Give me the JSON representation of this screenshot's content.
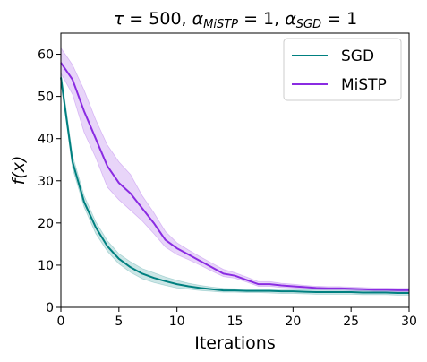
{
  "chart_data": {
    "type": "line",
    "title": {
      "tau": "500",
      "alpha_mistp_sub": "MiSTP",
      "alpha_mistp_value": "1",
      "alpha_sgd_sub": "SGD",
      "alpha_sgd_value": "1"
    },
    "xlabel": "Iterations",
    "ylabel": "f(x)",
    "xlim": [
      0,
      30
    ],
    "ylim": [
      0,
      65
    ],
    "xticks": [
      0,
      5,
      10,
      15,
      20,
      25,
      30
    ],
    "yticks": [
      0,
      10,
      20,
      30,
      40,
      50,
      60
    ],
    "grid": false,
    "legend_position": "top-right",
    "x": [
      0,
      1,
      2,
      3,
      4,
      5,
      6,
      7,
      8,
      9,
      10,
      11,
      12,
      13,
      14,
      15,
      16,
      17,
      18,
      19,
      20,
      21,
      22,
      23,
      24,
      25,
      26,
      27,
      28,
      29,
      30
    ],
    "series": [
      {
        "name": "SGD",
        "color": "#008080",
        "values": [
          54.5,
          34.5,
          25.0,
          19.0,
          14.5,
          11.5,
          9.5,
          8.0,
          7.0,
          6.2,
          5.5,
          5.0,
          4.6,
          4.3,
          4.0,
          4.0,
          3.9,
          3.9,
          3.9,
          3.8,
          3.8,
          3.7,
          3.6,
          3.6,
          3.6,
          3.6,
          3.5,
          3.5,
          3.5,
          3.4,
          3.4
        ],
        "lower": [
          53.5,
          33.0,
          23.8,
          17.5,
          13.3,
          10.3,
          8.3,
          6.8,
          5.9,
          5.2,
          4.6,
          4.3,
          4.0,
          3.8,
          3.6,
          3.6,
          3.5,
          3.5,
          3.4,
          3.3,
          3.3,
          3.2,
          3.1,
          3.1,
          3.1,
          3.1,
          3.0,
          3.0,
          3.0,
          2.9,
          2.9
        ],
        "upper": [
          56.0,
          36.0,
          26.5,
          20.3,
          15.8,
          12.7,
          10.8,
          9.2,
          8.2,
          7.2,
          6.4,
          5.7,
          5.2,
          4.8,
          4.5,
          4.4,
          4.3,
          4.3,
          4.3,
          4.3,
          4.3,
          4.2,
          4.1,
          4.1,
          4.1,
          4.1,
          4.0,
          4.0,
          4.0,
          3.9,
          3.9
        ]
      },
      {
        "name": "MiSTP",
        "color": "#8a2be2",
        "values": [
          58.0,
          54.0,
          46.5,
          40.0,
          33.5,
          29.5,
          27.0,
          23.5,
          20.0,
          16.0,
          14.0,
          12.5,
          11.0,
          9.5,
          8.0,
          7.5,
          6.5,
          5.5,
          5.5,
          5.2,
          5.0,
          4.8,
          4.6,
          4.5,
          4.5,
          4.4,
          4.3,
          4.2,
          4.2,
          4.1,
          4.1
        ],
        "lower": [
          55.5,
          50.5,
          41.5,
          35.5,
          28.5,
          25.5,
          23.0,
          20.5,
          17.5,
          14.3,
          12.5,
          11.3,
          10.0,
          8.6,
          7.3,
          6.9,
          6.0,
          5.0,
          5.0,
          4.7,
          4.6,
          4.4,
          4.2,
          4.1,
          4.1,
          4.0,
          3.9,
          3.8,
          3.8,
          3.7,
          3.7
        ],
        "upper": [
          61.5,
          57.5,
          51.5,
          44.5,
          38.5,
          34.5,
          31.5,
          26.5,
          22.5,
          18.0,
          15.3,
          13.6,
          12.0,
          10.5,
          9.0,
          8.2,
          7.2,
          6.1,
          6.1,
          5.7,
          5.5,
          5.2,
          5.0,
          4.9,
          4.9,
          4.8,
          4.7,
          4.6,
          4.6,
          4.5,
          4.5
        ]
      }
    ]
  }
}
